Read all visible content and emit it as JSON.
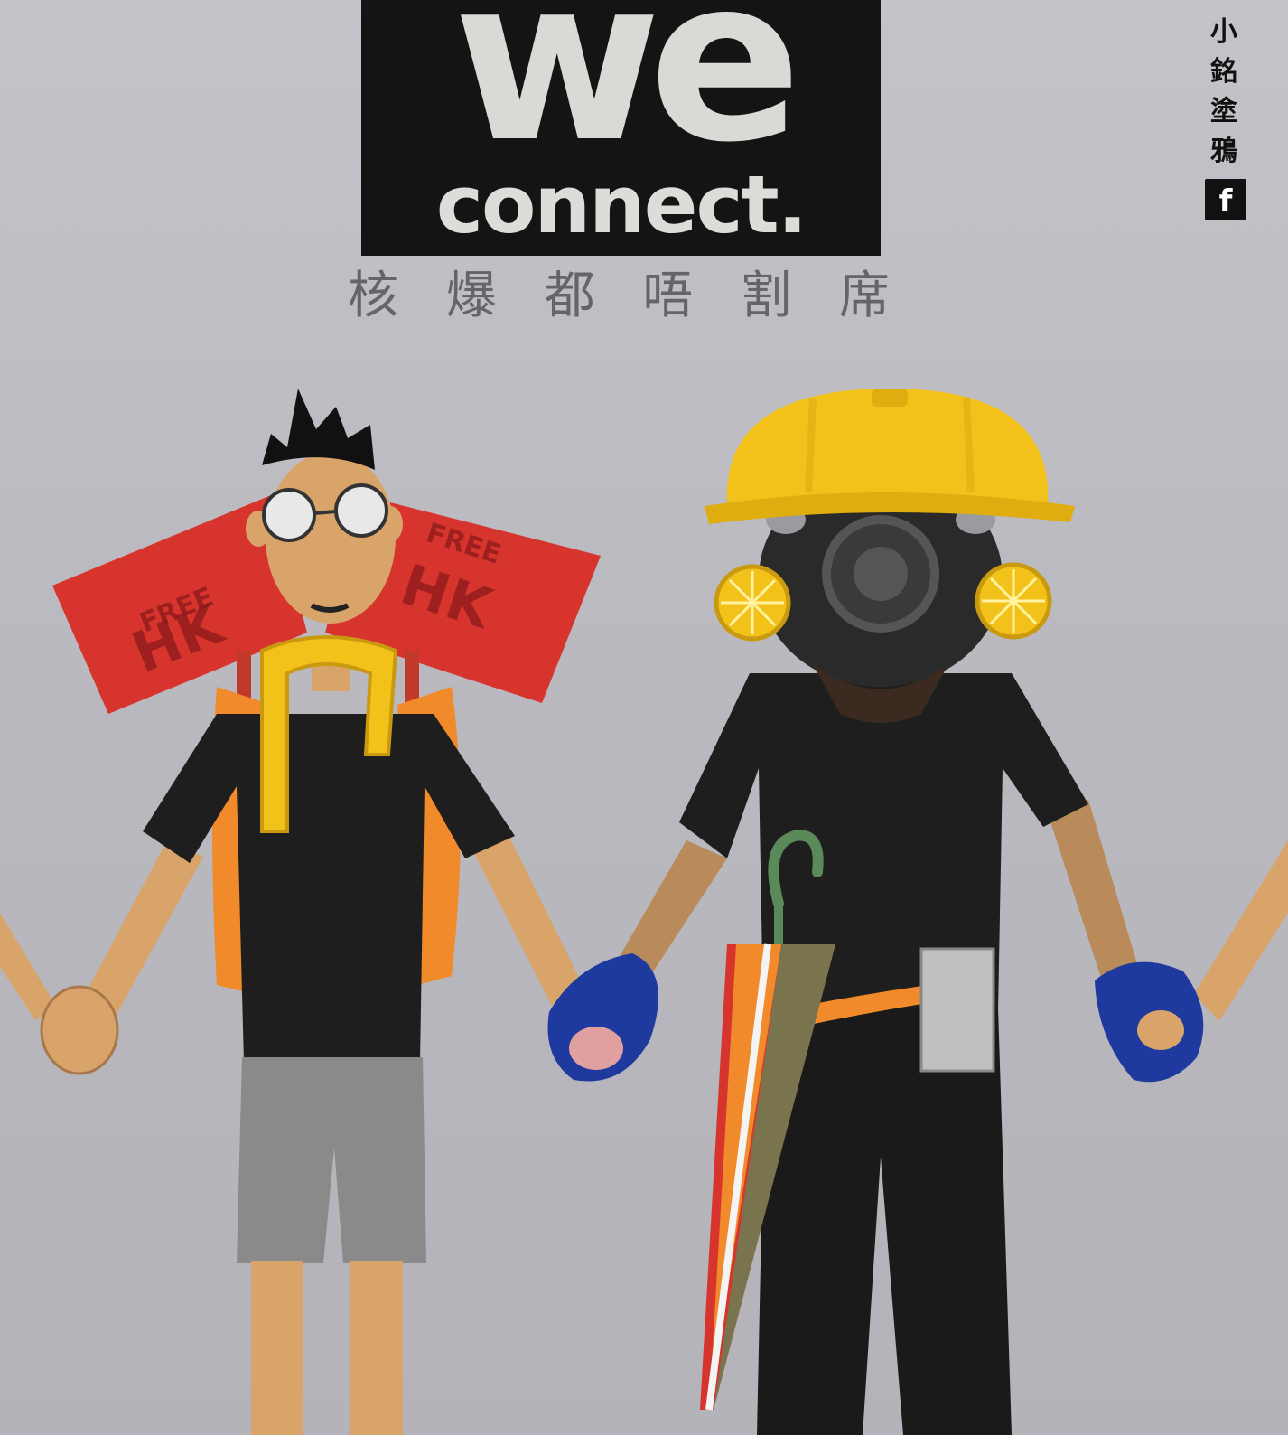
{
  "logo": {
    "word_top": "we",
    "word_bottom": "connect."
  },
  "subtitle": {
    "chars": [
      "核",
      "爆",
      "都",
      "唔",
      "割",
      "席"
    ]
  },
  "credit": {
    "chars": [
      "小",
      "銘",
      "塗",
      "鴉"
    ],
    "social_icon": "facebook-icon",
    "social_glyph": "f"
  },
  "signs": {
    "left_top": "FREE",
    "left_bottom": "HK",
    "right_top": "FREE",
    "right_bottom": "HK"
  },
  "colors": {
    "background": "#bcbcc2",
    "logo_box": "#141414",
    "helmet": "#f2c21a",
    "sign_red": "#d8342e",
    "glove_blue": "#1e3a9e",
    "shirt_black": "#1e1e1e"
  }
}
